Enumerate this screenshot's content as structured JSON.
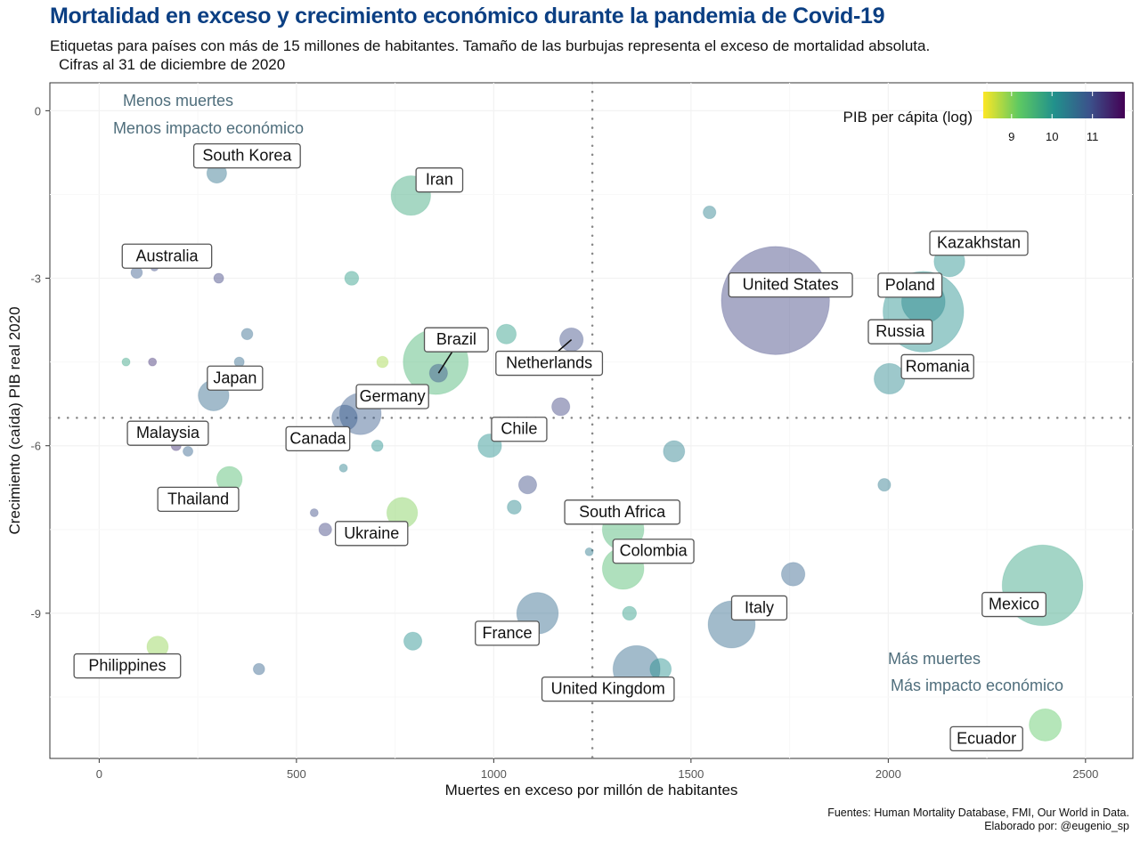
{
  "chart_data": {
    "type": "scatter",
    "title": "Mortalidad en exceso y crecimiento económico durante la pandemia de Covid-19",
    "subtitle": "Etiquetas para países con más de 15 millones de habitantes. Tamaño de las burbujas representa el exceso de mortalidad absoluta.",
    "subtitle2": "Cifras al 31 de diciembre de 2020",
    "xlabel": "Muertes en exceso por millón de habitantes",
    "ylabel": "Crecimiento (caída) PIB real 2020",
    "caption": [
      "Fuentes: Human Mortality Database, FMI, Our World in Data.",
      "Elaborado por: @eugenio_sp"
    ],
    "xlim": [
      -125,
      2620
    ],
    "ylim": [
      -11.6,
      0.5
    ],
    "xticks": [
      0,
      500,
      1000,
      1500,
      2000,
      2500
    ],
    "xtick_labels": [
      "0",
      "500",
      "1000",
      "1500",
      "2000",
      "2500"
    ],
    "yticks": [
      0,
      -3,
      -6,
      -9
    ],
    "ytick_labels": [
      "0",
      "-3",
      "-6",
      "-9"
    ],
    "grid": true,
    "reference_lines": {
      "x": 1250,
      "y": -5.5
    },
    "quadrant_labels": [
      {
        "lines": [
          "Menos muertes",
          "Menos impacto económico"
        ],
        "position": "top-left"
      },
      {
        "lines": [
          "Más muertes",
          "Más impacto económico"
        ],
        "position": "bottom-right"
      }
    ],
    "legend": {
      "title": "PIB per cápita (log)",
      "placement": "top-right",
      "type": "colorbar",
      "range": [
        8.3,
        11.8
      ],
      "ticks": [
        9,
        10,
        11
      ]
    },
    "size_note": "size = relative absolute excess deaths (arbitrary units, estimated)",
    "points": [
      {
        "label": "South Korea",
        "x": 298,
        "y": -1.12,
        "size": 12,
        "gdp_log": 10.5
      },
      {
        "label": "Iran",
        "x": 790,
        "y": -1.52,
        "size": 48,
        "gdp_log": 9.7
      },
      {
        "label": "Australia",
        "x": 95,
        "y": -2.9,
        "size": 4,
        "gdp_log": 10.8
      },
      {
        "label": "",
        "x": 140,
        "y": -2.8,
        "size": 2,
        "gdp_log": 11.0
      },
      {
        "label": "",
        "x": 303,
        "y": -3.0,
        "size": 3,
        "gdp_log": 11.1
      },
      {
        "label": "",
        "x": 640,
        "y": -3.0,
        "size": 6,
        "gdp_log": 9.9
      },
      {
        "label": "",
        "x": 375,
        "y": -4.0,
        "size": 4,
        "gdp_log": 10.6
      },
      {
        "label": "",
        "x": 68,
        "y": -4.5,
        "size": 2,
        "gdp_log": 9.8
      },
      {
        "label": "",
        "x": 135,
        "y": -4.5,
        "size": 2,
        "gdp_log": 11.3
      },
      {
        "label": "",
        "x": 355,
        "y": -4.5,
        "size": 3,
        "gdp_log": 10.6
      },
      {
        "label": "Japan",
        "x": 290,
        "y": -5.1,
        "size": 29,
        "gdp_log": 10.6
      },
      {
        "label": "",
        "x": 718,
        "y": -4.5,
        "size": 4,
        "gdp_log": 8.8
      },
      {
        "label": "",
        "x": 853,
        "y": -4.5,
        "size": 130,
        "gdp_log": 9.5
      },
      {
        "label": "Brazil",
        "x": 860,
        "y": -4.7,
        "size": 10,
        "gdp_log": 10.9
      },
      {
        "label": "Germany",
        "x": 662,
        "y": -5.43,
        "size": 53,
        "gdp_log": 10.8
      },
      {
        "label": "Canada",
        "x": 622,
        "y": -5.5,
        "size": 20,
        "gdp_log": 10.8
      },
      {
        "label": "Malaysia",
        "x": 165,
        "y": -5.8,
        "size": 6,
        "gdp_log": 10.2
      },
      {
        "label": "",
        "x": 195,
        "y": -6.0,
        "size": 3,
        "gdp_log": 11.3
      },
      {
        "label": "",
        "x": 225,
        "y": -6.1,
        "size": 3,
        "gdp_log": 10.7
      },
      {
        "label": "",
        "x": 705,
        "y": -6.0,
        "size": 4,
        "gdp_log": 10.1
      },
      {
        "label": "",
        "x": 619,
        "y": -6.4,
        "size": 2,
        "gdp_log": 10.3
      },
      {
        "label": "Thailand",
        "x": 330,
        "y": -6.6,
        "size": 20,
        "gdp_log": 9.4
      },
      {
        "label": "Ukraine",
        "x": 573,
        "y": -7.5,
        "size": 5,
        "gdp_log": 11.1
      },
      {
        "label": "",
        "x": 545,
        "y": -7.2,
        "size": 2,
        "gdp_log": 11.0
      },
      {
        "label": "",
        "x": 768,
        "y": -7.2,
        "size": 29,
        "gdp_log": 9.0
      },
      {
        "label": "Philippines",
        "x": 148,
        "y": -9.6,
        "size": 14,
        "gdp_log": 8.9
      },
      {
        "label": "",
        "x": 405,
        "y": -10.0,
        "size": 4,
        "gdp_log": 10.7
      },
      {
        "label": "",
        "x": 795,
        "y": -9.5,
        "size": 10,
        "gdp_log": 10.1
      },
      {
        "label": "Netherlands",
        "x": 1197,
        "y": -4.1,
        "size": 17,
        "gdp_log": 11.0
      },
      {
        "label": "",
        "x": 1032,
        "y": -4.0,
        "size": 12,
        "gdp_log": 9.9
      },
      {
        "label": "",
        "x": 1170,
        "y": -5.3,
        "size": 10,
        "gdp_log": 11.1
      },
      {
        "label": "Chile",
        "x": 990,
        "y": -6.0,
        "size": 17,
        "gdp_log": 10.1
      },
      {
        "label": "",
        "x": 1086,
        "y": -6.7,
        "size": 10,
        "gdp_log": 11.0
      },
      {
        "label": "",
        "x": 1052,
        "y": -7.1,
        "size": 6,
        "gdp_log": 10.2
      },
      {
        "label": "South Africa",
        "x": 1328,
        "y": -7.5,
        "size": 53,
        "gdp_log": 9.5
      },
      {
        "label": "",
        "x": 1242,
        "y": -7.9,
        "size": 2,
        "gdp_log": 10.4
      },
      {
        "label": "Colombia",
        "x": 1328,
        "y": -8.2,
        "size": 53,
        "gdp_log": 9.4
      },
      {
        "label": "",
        "x": 1344,
        "y": -9.0,
        "size": 6,
        "gdp_log": 9.9
      },
      {
        "label": "France",
        "x": 1111,
        "y": -9.0,
        "size": 53,
        "gdp_log": 10.6
      },
      {
        "label": "United Kingdom",
        "x": 1362,
        "y": -10.0,
        "size": 68,
        "gdp_log": 10.6
      },
      {
        "label": "",
        "x": 1423,
        "y": -10.0,
        "size": 14,
        "gdp_log": 10.1
      },
      {
        "label": "Italy",
        "x": 1603,
        "y": -9.2,
        "size": 68,
        "gdp_log": 10.6
      },
      {
        "label": "",
        "x": 1759,
        "y": -8.3,
        "size": 17,
        "gdp_log": 10.7
      },
      {
        "label": "",
        "x": 1457,
        "y": -6.1,
        "size": 14,
        "gdp_log": 10.3
      },
      {
        "label": "",
        "x": 1547,
        "y": -1.82,
        "size": 5,
        "gdp_log": 10.3
      },
      {
        "label": "United States",
        "x": 1714,
        "y": -3.4,
        "size": 360,
        "gdp_log": 11.1
      },
      {
        "label": "Russia",
        "x": 2089,
        "y": -3.6,
        "size": 200,
        "gdp_log": 10.1
      },
      {
        "label": "Poland",
        "x": 2089,
        "y": -3.42,
        "size": 58,
        "gdp_log": 10.2
      },
      {
        "label": "Kazakhstan",
        "x": 2155,
        "y": -2.7,
        "size": 29,
        "gdp_log": 10.1
      },
      {
        "label": "Romania",
        "x": 2003,
        "y": -4.8,
        "size": 29,
        "gdp_log": 10.2
      },
      {
        "label": "",
        "x": 1990,
        "y": -6.7,
        "size": 5,
        "gdp_log": 10.4
      },
      {
        "label": "Mexico",
        "x": 2391,
        "y": -8.5,
        "size": 200,
        "gdp_log": 9.8
      },
      {
        "label": "Ecuador",
        "x": 2398,
        "y": -11.0,
        "size": 32,
        "gdp_log": 9.2
      }
    ]
  }
}
